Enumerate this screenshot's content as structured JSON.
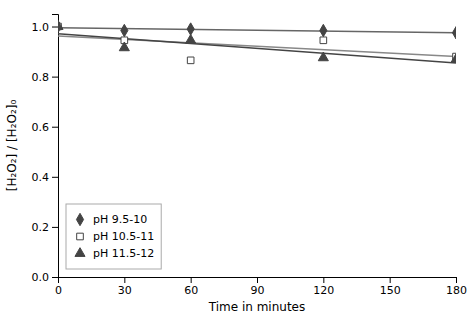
{
  "chart_data": {
    "type": "scatter",
    "x_label": "Time in minutes",
    "y_label": "[H₂O₂] / [H₂O₂]₀",
    "xlim": [
      0,
      180
    ],
    "ylim": [
      0.0,
      1.05
    ],
    "xticks": [
      0,
      30,
      60,
      90,
      120,
      150,
      180
    ],
    "yticks": [
      {
        "value": 0.0,
        "label": "0.0"
      },
      0.2,
      0.4,
      0.6,
      0.8,
      {
        "value": 1.0,
        "label": "1.0"
      }
    ],
    "grid": false,
    "legend": "lower left",
    "series": [
      {
        "name": "pH 9.5-10",
        "marker": "diamond",
        "color": "#444444",
        "x": [
          0,
          30,
          60,
          120,
          180
        ],
        "values": [
          1.0,
          0.984,
          0.99,
          0.984,
          0.975
        ],
        "trend": {
          "x": [
            0,
            180
          ],
          "values": [
            0.99509,
            0.97549
          ],
          "color": "#666666"
        }
      },
      {
        "name": "pH 10.5-11",
        "marker": "square-open",
        "color": "#444444",
        "x": [
          0,
          30,
          60,
          120,
          180
        ],
        "values": [
          1.0,
          0.945,
          0.865,
          0.945,
          0.88
        ],
        "trend": {
          "x": [
            0,
            180
          ],
          "values": [
            0.96241,
            0.88069
          ],
          "color": "#888888"
        }
      },
      {
        "name": "pH 11.5-12",
        "marker": "triangle",
        "color": "#444444",
        "x": [
          0,
          30,
          60,
          120,
          180
        ],
        "values": [
          1.0,
          0.915,
          0.945,
          0.875,
          0.868
        ],
        "trend": {
          "x": [
            0,
            180
          ],
          "values": [
            0.97157,
            0.85395
          ],
          "color": "#444444"
        }
      }
    ]
  }
}
